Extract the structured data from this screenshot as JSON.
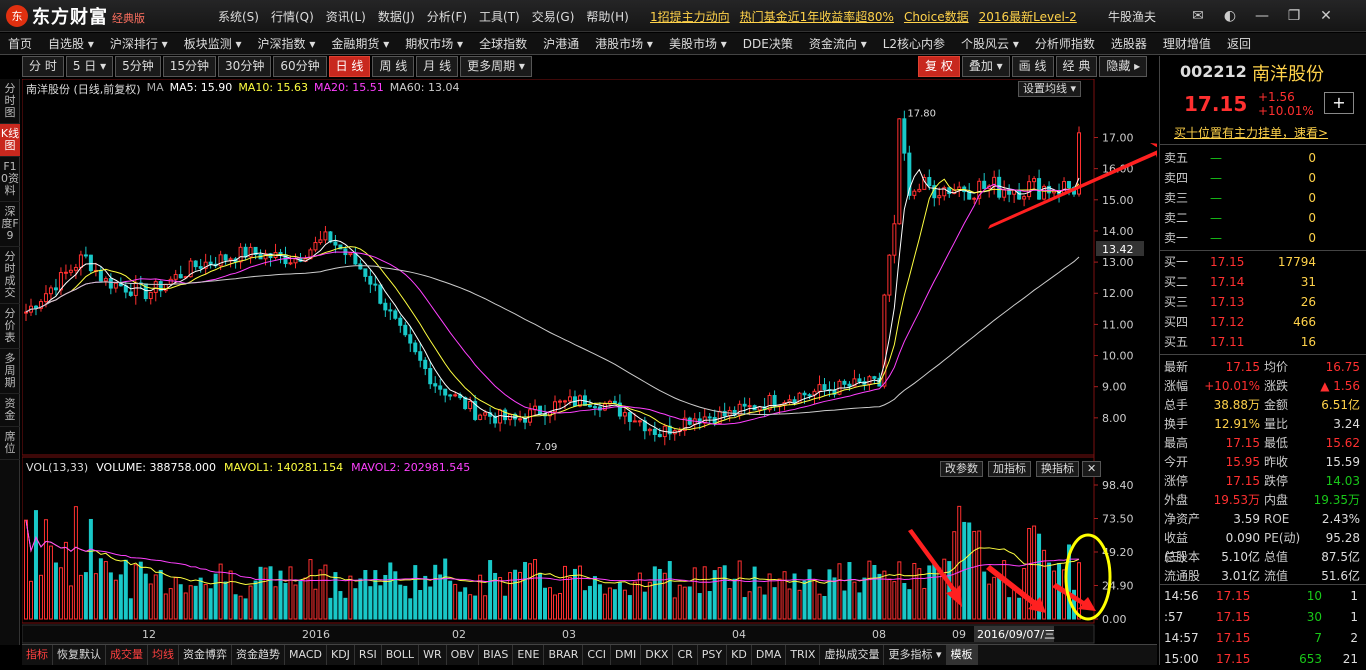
{
  "app": {
    "logo_mark": "东",
    "logo": "东方财富",
    "logo_sub": "经典版",
    "menus": [
      "系统(S)",
      "行情(Q)",
      "资讯(L)",
      "数据(J)",
      "分析(F)",
      "工具(T)",
      "交易(G)",
      "帮助(H)"
    ],
    "ticker": [
      "1招提主力动向",
      "热门基金近1年收益率超80%",
      "Choice数据",
      "2016最新Level-2"
    ],
    "user": "牛股渔夫"
  },
  "nav": [
    "首页",
    "自选股 ▾",
    "沪深排行 ▾",
    "板块监测 ▾",
    "沪深指数 ▾",
    "金融期货 ▾",
    "期权市场 ▾",
    "全球指数",
    "沪港通",
    "港股市场 ▾",
    "美股市场 ▾",
    "DDE决策",
    "资金流向 ▾",
    "L2核心内参",
    "个股风云 ▾",
    "分析师指数",
    "选股器",
    "理财增值",
    "返回"
  ],
  "timeframes": [
    "分 时",
    "5 日 ▾",
    "5分钟",
    "15分钟",
    "30分钟",
    "60分钟",
    "日 线",
    "周 线",
    "月 线",
    "更多周期 ▾"
  ],
  "active_timeframe": 6,
  "right_buttons": [
    "复 权",
    "叠加 ▾",
    "画 线",
    "经 典",
    "隐藏 ▸"
  ],
  "left_strip": [
    "分时图",
    "K线图",
    "F10资料",
    "深度F9",
    "分时成交",
    "分价表",
    "多周期",
    "资金",
    "席位"
  ],
  "legend": {
    "stock": "南洋股份 (日线,前复权)",
    "ma": "MA",
    "ma5": "MA5: 15.90",
    "ma10": "MA10: 15.63",
    "ma20": "MA20: 15.51",
    "ma60": "MA60: 13.04",
    "settings": "设置均线 ▾"
  },
  "vol_legend": {
    "name": "VOL(13,33)",
    "volume": "VOLUME: 388758.000",
    "mavol1": "MAVOL1: 140281.154",
    "mavol2": "MAVOL2: 202981.545",
    "buttons": [
      "改参数",
      "加指标",
      "换指标",
      "✕"
    ]
  },
  "price_axis": [
    "17.00",
    "16.00",
    "15.00",
    "14.00",
    "13.00",
    "12.00",
    "11.00",
    "10.00",
    "9.00",
    "8.00"
  ],
  "current_price_label": "13.42",
  "high_label": "17.80",
  "low_label": "7.09",
  "vol_axis": [
    "98.40",
    "73.50",
    "49.20",
    "24.90",
    "0.00"
  ],
  "date_axis": [
    "12",
    "2016",
    "02",
    "03",
    "04",
    "08",
    "09"
  ],
  "cursor_date": "2016/09/07/三",
  "bottom_tabs": [
    "指标",
    "恢复默认",
    "成交量",
    "均线",
    "资金博弈",
    "资金趋势",
    "MACD",
    "KDJ",
    "RSI",
    "BOLL",
    "WR",
    "OBV",
    "BIAS",
    "ENE",
    "BRAR",
    "CCI",
    "DMI",
    "DKX",
    "CR",
    "PSY",
    "KD",
    "DMA",
    "TRIX",
    "虚拟成交量",
    "更多指标 ▾",
    "模板"
  ],
  "quote": {
    "code": "002212",
    "name": "南洋股份",
    "price": "17.15",
    "change": "+1.56",
    "pct": "+10.01%",
    "notice": "买十位置有主力挂单，速看>"
  },
  "sell": [
    {
      "label": "卖五",
      "price": "—",
      "vol": "0"
    },
    {
      "label": "卖四",
      "price": "—",
      "vol": "0"
    },
    {
      "label": "卖三",
      "price": "—",
      "vol": "0"
    },
    {
      "label": "卖二",
      "price": "—",
      "vol": "0"
    },
    {
      "label": "卖一",
      "price": "—",
      "vol": "0"
    }
  ],
  "buy": [
    {
      "label": "买一",
      "price": "17.15",
      "vol": "17794"
    },
    {
      "label": "买二",
      "price": "17.14",
      "vol": "31"
    },
    {
      "label": "买三",
      "price": "17.13",
      "vol": "26"
    },
    {
      "label": "买四",
      "price": "17.12",
      "vol": "466"
    },
    {
      "label": "买五",
      "price": "17.11",
      "vol": "16"
    }
  ],
  "stats": [
    {
      "l1": "最新",
      "v1": "17.15",
      "c1": "red",
      "l2": "均价",
      "v2": "16.75",
      "c2": "red"
    },
    {
      "l1": "涨幅",
      "v1": "+10.01%",
      "c1": "red",
      "l2": "涨跌",
      "v2": "▲ 1.56",
      "c2": "red"
    },
    {
      "l1": "总手",
      "v1": "38.88万",
      "c1": "yel",
      "l2": "金额",
      "v2": "6.51亿",
      "c2": "yel"
    },
    {
      "l1": "换手",
      "v1": "12.91%",
      "c1": "yel",
      "l2": "量比",
      "v2": "3.24",
      "c2": "wht"
    },
    {
      "l1": "最高",
      "v1": "17.15",
      "c1": "red",
      "l2": "最低",
      "v2": "15.62",
      "c2": "red"
    },
    {
      "l1": "今开",
      "v1": "15.95",
      "c1": "red",
      "l2": "昨收",
      "v2": "15.59",
      "c2": "wht"
    },
    {
      "l1": "涨停",
      "v1": "17.15",
      "c1": "red",
      "l2": "跌停",
      "v2": "14.03",
      "c2": "grn"
    },
    {
      "l1": "外盘",
      "v1": "19.53万",
      "c1": "red",
      "l2": "内盘",
      "v2": "19.35万",
      "c2": "grn"
    },
    {
      "l1": "净资产",
      "v1": "3.59",
      "c1": "wht",
      "l2": "ROE",
      "v2": "2.43%",
      "c2": "wht"
    },
    {
      "l1": "收益(三)",
      "v1": "0.090",
      "c1": "wht",
      "l2": "PE(动)",
      "v2": "95.28",
      "c2": "wht"
    },
    {
      "l1": "总股本",
      "v1": "5.10亿",
      "c1": "wht",
      "l2": "总值",
      "v2": "87.5亿",
      "c2": "wht"
    },
    {
      "l1": "流通股",
      "v1": "3.01亿",
      "c1": "wht",
      "l2": "流值",
      "v2": "51.6亿",
      "c2": "wht"
    }
  ],
  "ticks": [
    {
      "t": "14:56",
      "p": "17.15",
      "v": "10",
      "n": "1"
    },
    {
      "t": ":57",
      "p": "17.15",
      "v": "30",
      "n": "1"
    },
    {
      "t": "14:57",
      "p": "17.15",
      "v": "7",
      "n": "2"
    },
    {
      "t": "15:00",
      "p": "17.15",
      "v": "653",
      "n": "21"
    }
  ],
  "colors": {
    "up": "#ff3030",
    "down": "#19c8c8",
    "ma5": "#ffffff",
    "ma10": "#ffff40",
    "ma20": "#ff40ff",
    "ma60": "#cccccc",
    "annotation": "#ff2020",
    "circle": "#ffff00"
  }
}
